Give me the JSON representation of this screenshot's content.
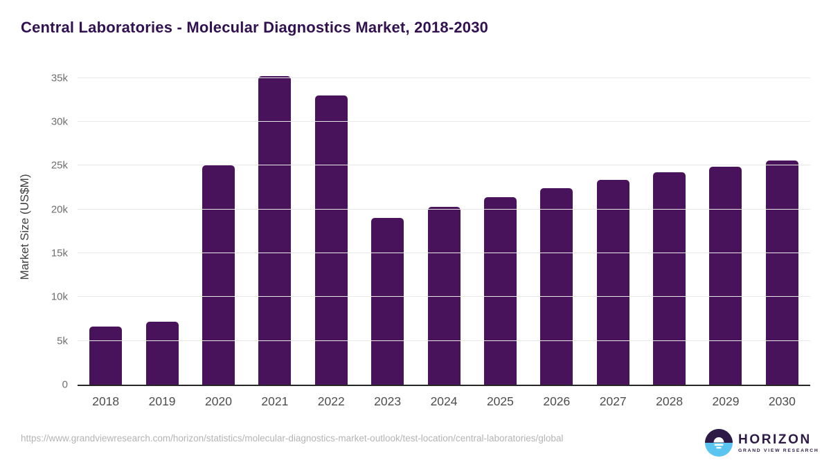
{
  "title": "Central Laboratories - Molecular Diagnostics Market, 2018-2030",
  "chart_data": {
    "type": "bar",
    "title": "Central Laboratories - Molecular Diagnostics Market, 2018-2030",
    "categories": [
      "2018",
      "2019",
      "2020",
      "2021",
      "2022",
      "2023",
      "2024",
      "2025",
      "2026",
      "2027",
      "2028",
      "2029",
      "2030"
    ],
    "values": [
      6600,
      7200,
      25000,
      35200,
      33000,
      19000,
      20300,
      21400,
      22400,
      23400,
      24200,
      24900,
      25600
    ],
    "xlabel": "",
    "ylabel": "Market Size (US$M)",
    "ylim": [
      0,
      36000
    ],
    "yticks": [
      0,
      5000,
      10000,
      15000,
      20000,
      25000,
      30000,
      35000
    ],
    "ytick_labels": [
      "0",
      "5k",
      "10k",
      "15k",
      "20k",
      "25k",
      "30k",
      "35k"
    ],
    "grid": true,
    "legend": false,
    "bar_color": "#49135c"
  },
  "footer": {
    "source_url": "https://www.grandviewresearch.com/horizon/statistics/molecular-diagnostics-market-outlook/test-location/central-laboratories/global",
    "logo_name": "HORIZON",
    "logo_subtitle": "GRAND VIEW RESEARCH"
  },
  "colors": {
    "bar": "#49135c",
    "title_text": "#321150",
    "axis_line": "#262626",
    "gridline": "#e8e8e8",
    "ytick_text": "#6e6e6e",
    "xtick_text": "#4d4d4d",
    "url_text": "#b4b4b4",
    "logo_purple": "#2e1a47",
    "logo_blue": "#5bc5f2"
  }
}
